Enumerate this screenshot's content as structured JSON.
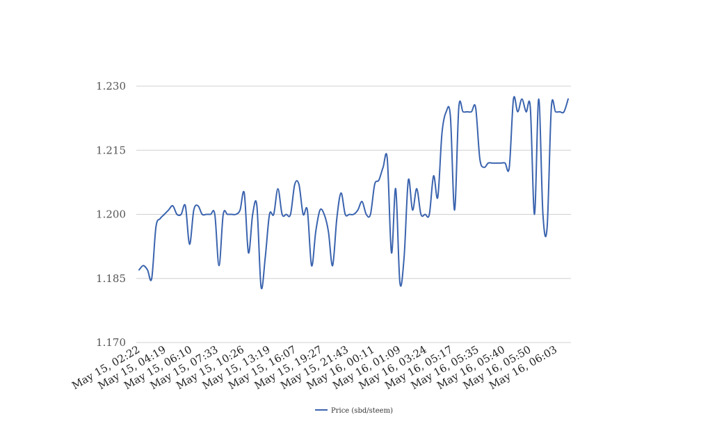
{
  "chart_data": {
    "type": "line",
    "ylim": [
      1.17,
      1.23
    ],
    "y_ticks": [
      "1.170",
      "1.185",
      "1.200",
      "1.215",
      "1.230"
    ],
    "y_tick_values": [
      1.17,
      1.185,
      1.2,
      1.215,
      1.23
    ],
    "grid": true,
    "legend_position": "bottom-center",
    "x_tick_labels": [
      "May 15, 02:22",
      "May 15, 04:19",
      "May 15, 06:10",
      "May 15, 07:33",
      "May 15, 10:26",
      "May 15, 13:19",
      "May 15, 16:07",
      "May 15, 19:27",
      "May 15, 21:43",
      "May 16, 00:11",
      "May 16, 01:09",
      "May 16, 03:24",
      "May 16, 05:17",
      "May 16, 05:35",
      "May 16, 05:40",
      "May 16, 05:50",
      "May 16, 06:03"
    ],
    "series": [
      {
        "name": "Price (sbd/steem)",
        "color": "#3a63ae",
        "values": [
          1.187,
          1.188,
          1.187,
          1.185,
          1.197,
          1.199,
          1.2,
          1.201,
          1.202,
          1.2,
          1.2,
          1.202,
          1.193,
          1.201,
          1.202,
          1.2,
          1.2,
          1.2,
          1.2,
          1.188,
          1.2,
          1.2,
          1.2,
          1.2,
          1.201,
          1.205,
          1.191,
          1.2,
          1.202,
          1.183,
          1.19,
          1.2,
          1.2,
          1.206,
          1.2,
          1.2,
          1.2,
          1.207,
          1.207,
          1.2,
          1.201,
          1.188,
          1.196,
          1.201,
          1.2,
          1.196,
          1.188,
          1.199,
          1.205,
          1.2,
          1.2,
          1.2,
          1.201,
          1.203,
          1.2,
          1.2,
          1.207,
          1.208,
          1.211,
          1.213,
          1.191,
          1.206,
          1.184,
          1.19,
          1.208,
          1.201,
          1.206,
          1.2,
          1.2,
          1.2,
          1.209,
          1.204,
          1.219,
          1.224,
          1.223,
          1.201,
          1.225,
          1.224,
          1.224,
          1.224,
          1.225,
          1.213,
          1.211,
          1.212,
          1.212,
          1.212,
          1.212,
          1.212,
          1.211,
          1.227,
          1.224,
          1.227,
          1.224,
          1.225,
          1.2,
          1.227,
          1.2,
          1.197,
          1.225,
          1.224,
          1.224,
          1.224,
          1.227
        ]
      }
    ]
  }
}
